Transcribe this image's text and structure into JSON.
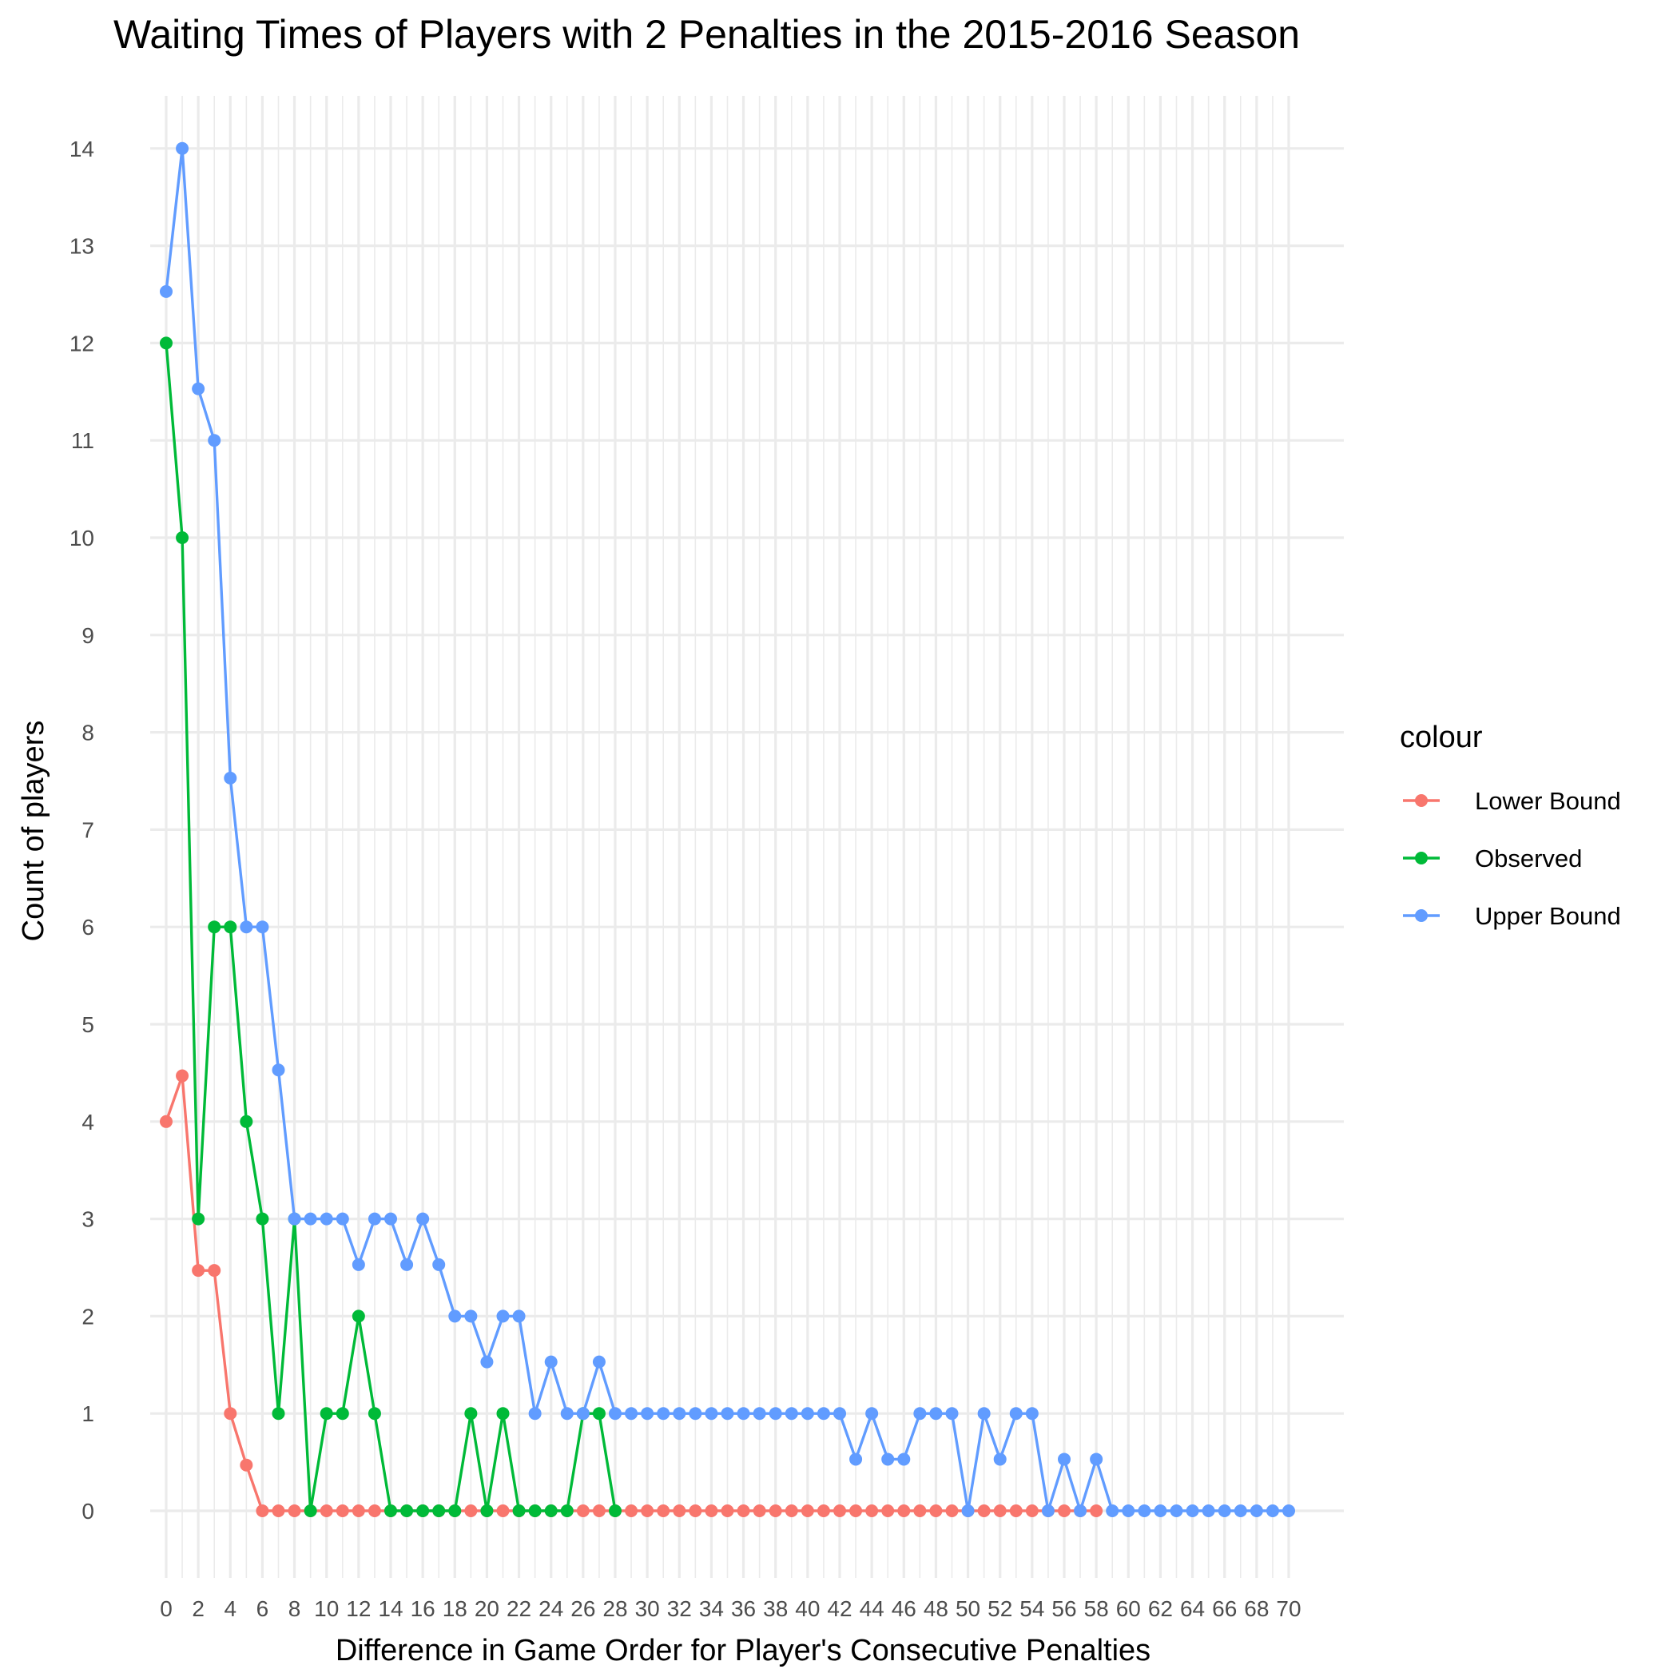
{
  "chart_data": {
    "type": "line",
    "title": "Waiting Times of Players with 2 Penalties in the 2015-2016 Season",
    "xlabel": "Difference in Game Order for Player's Consecutive Penalties",
    "ylabel": "Count of players",
    "xlim": [
      0,
      70
    ],
    "ylim": [
      0,
      14
    ],
    "x_ticks": [
      0,
      2,
      4,
      6,
      8,
      10,
      12,
      14,
      16,
      18,
      20,
      22,
      24,
      26,
      28,
      30,
      32,
      34,
      36,
      38,
      40,
      42,
      44,
      46,
      48,
      50,
      52,
      54,
      56,
      58,
      60,
      62,
      64,
      66,
      68,
      70
    ],
    "x_tick_labels": [
      "0",
      "2",
      "4",
      "6",
      "8",
      "10",
      "12",
      "14",
      "16",
      "18",
      "20",
      "22",
      "24",
      "26",
      "28",
      "30",
      "32",
      "34",
      "36",
      "38",
      "40",
      "42",
      "44",
      "46",
      "48",
      "50",
      "52",
      "54",
      "56",
      "58",
      "60",
      "62",
      "64",
      "66",
      "68",
      "70"
    ],
    "y_ticks": [
      0,
      1,
      2,
      3,
      4,
      5,
      6,
      7,
      8,
      9,
      10,
      11,
      12,
      13,
      14
    ],
    "y_tick_labels": [
      "0",
      "1",
      "2",
      "3",
      "4",
      "5",
      "6",
      "7",
      "8",
      "9",
      "10",
      "11",
      "12",
      "13",
      "14"
    ],
    "grid": true,
    "legend": {
      "title": "colour",
      "placement": "right",
      "entries": [
        "Lower Bound",
        "Observed",
        "Upper Bound"
      ]
    },
    "series": [
      {
        "name": "Lower Bound",
        "color": "#F8766D",
        "x": [
          0,
          1,
          2,
          3,
          4,
          5,
          6,
          7,
          8,
          9,
          10,
          11,
          12,
          13,
          14,
          15,
          16,
          17,
          18,
          19,
          20,
          21,
          22,
          23,
          24,
          25,
          26,
          27,
          28,
          29,
          30,
          31,
          32,
          33,
          34,
          35,
          36,
          37,
          38,
          39,
          40,
          41,
          42,
          43,
          44,
          45,
          46,
          47,
          48,
          49,
          50,
          51,
          52,
          53,
          54,
          55,
          56,
          57,
          58
        ],
        "values": [
          4,
          4.47,
          2.47,
          2.47,
          1,
          0.47,
          0,
          0,
          0,
          0,
          0,
          0,
          0,
          0,
          0,
          0,
          0,
          0,
          0,
          0,
          0,
          0,
          0,
          0,
          0,
          0,
          0,
          0,
          0,
          0,
          0,
          0,
          0,
          0,
          0,
          0,
          0,
          0,
          0,
          0,
          0,
          0,
          0,
          0,
          0,
          0,
          0,
          0,
          0,
          0,
          0,
          0,
          0,
          0,
          0,
          0,
          0,
          0,
          0
        ]
      },
      {
        "name": "Observed",
        "color": "#00BA38",
        "x": [
          0,
          1,
          2,
          3,
          4,
          5,
          6,
          7,
          8,
          9,
          10,
          11,
          12,
          13,
          14,
          15,
          16,
          17,
          18,
          19,
          20,
          21,
          22,
          23,
          24,
          25,
          26,
          27,
          28
        ],
        "values": [
          12,
          10,
          3,
          6,
          6,
          4,
          3,
          1,
          3,
          0,
          1,
          1,
          2,
          1,
          0,
          0,
          0,
          0,
          0,
          1,
          0,
          1,
          0,
          0,
          0,
          0,
          1,
          1,
          0
        ]
      },
      {
        "name": "Upper Bound",
        "color": "#619CFF",
        "x": [
          0,
          1,
          2,
          3,
          4,
          5,
          6,
          7,
          8,
          9,
          10,
          11,
          12,
          13,
          14,
          15,
          16,
          17,
          18,
          19,
          20,
          21,
          22,
          23,
          24,
          25,
          26,
          27,
          28,
          29,
          30,
          31,
          32,
          33,
          34,
          35,
          36,
          37,
          38,
          39,
          40,
          41,
          42,
          43,
          44,
          45,
          46,
          47,
          48,
          49,
          50,
          51,
          52,
          53,
          54,
          55,
          56,
          57,
          58,
          59,
          60,
          61,
          62,
          63,
          64,
          65,
          66,
          67,
          68,
          69,
          70
        ],
        "values": [
          12.53,
          14,
          11.53,
          11,
          7.53,
          6,
          6,
          4.53,
          3,
          3,
          3,
          3,
          2.53,
          3,
          3,
          2.53,
          3,
          2.53,
          2,
          2,
          1.53,
          2,
          2,
          1,
          1.53,
          1,
          1,
          1.53,
          1,
          1,
          1,
          1,
          1,
          1,
          1,
          1,
          1,
          1,
          1,
          1,
          1,
          1,
          1,
          0.53,
          1,
          0.53,
          0.53,
          1,
          1,
          1,
          0,
          1,
          0.53,
          1,
          1,
          0,
          0.53,
          0,
          0.53,
          0,
          0,
          0,
          0,
          0,
          0,
          0,
          0,
          0,
          0,
          0,
          0
        ]
      }
    ]
  }
}
